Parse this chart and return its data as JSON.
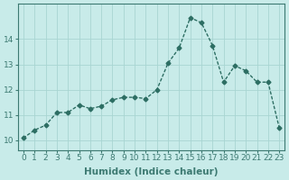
{
  "xlabel": "Humidex (Indice chaleur)",
  "x": [
    0,
    1,
    2,
    3,
    4,
    5,
    6,
    7,
    8,
    9,
    10,
    11,
    12,
    13,
    14,
    15,
    16,
    17,
    18,
    19,
    20,
    21,
    22,
    23
  ],
  "y": [
    10.1,
    10.4,
    10.6,
    11.1,
    11.1,
    11.4,
    11.25,
    11.35,
    11.6,
    11.7,
    11.7,
    11.65,
    12.0,
    13.05,
    13.65,
    14.85,
    14.65,
    13.75,
    12.3,
    12.95,
    12.75,
    12.3,
    12.3,
    10.5
  ],
  "line_color": "#2d6e63",
  "marker": "D",
  "marker_size": 2.5,
  "line_width": 1.0,
  "bg_color": "#c8ebe9",
  "grid_color": "#a8d5d2",
  "ylim": [
    9.6,
    15.4
  ],
  "xlim": [
    -0.5,
    23.5
  ],
  "yticks": [
    10,
    11,
    12,
    13,
    14
  ],
  "xticks": [
    0,
    1,
    2,
    3,
    4,
    5,
    6,
    7,
    8,
    9,
    10,
    11,
    12,
    13,
    14,
    15,
    16,
    17,
    18,
    19,
    20,
    21,
    22,
    23
  ],
  "tick_fontsize": 6.5,
  "xlabel_fontsize": 7.5,
  "axis_color": "#3d7a72"
}
